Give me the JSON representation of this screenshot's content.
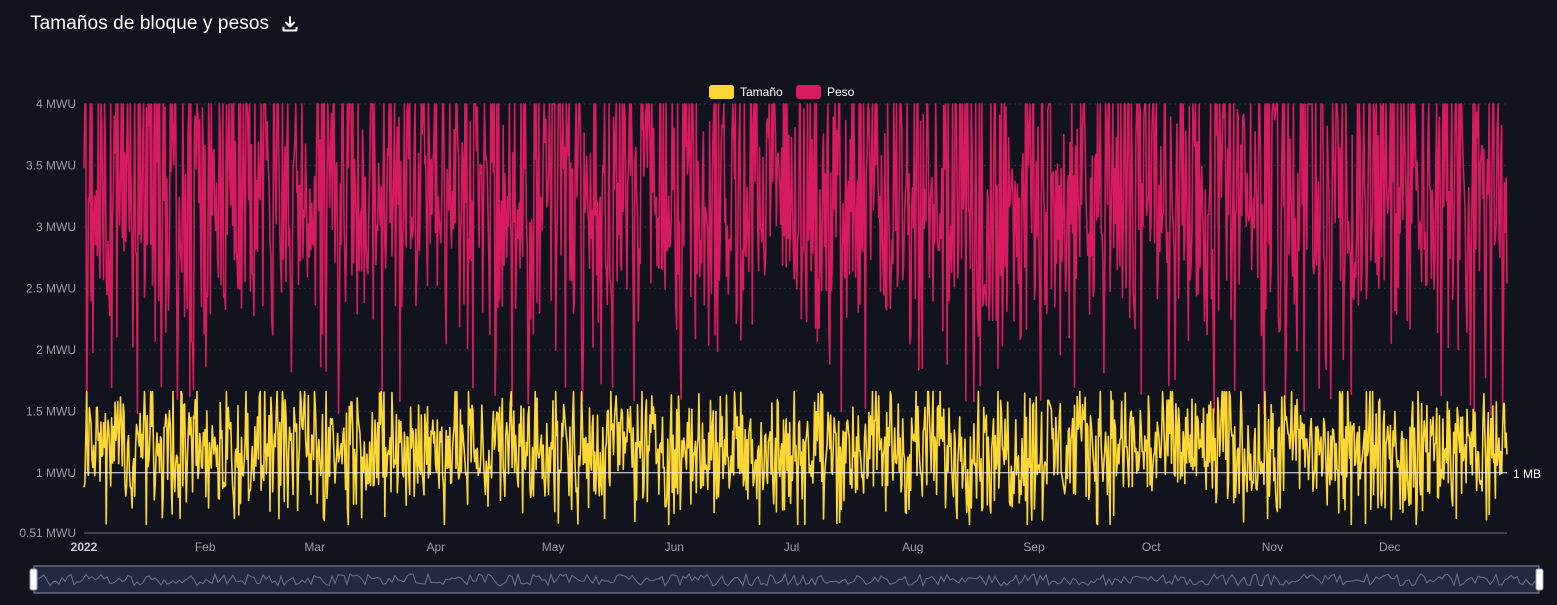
{
  "header": {
    "title": "Tamaños de bloque y pesos",
    "download_icon": "download-icon"
  },
  "colors": {
    "background": "#11131f",
    "size": "#fdd835",
    "weight": "#d81b60",
    "grid": "#2a2d3a",
    "axis_text": "#9a9ca6"
  },
  "chart_data": {
    "type": "line",
    "x_range": [
      "2022-01-01",
      "2022-12-31"
    ],
    "ylim": [
      0.51,
      4
    ],
    "y_unit": "MWU",
    "yticks": [
      "0.51 MWU",
      "1 MWU",
      "1.5 MWU",
      "2 MWU",
      "2.5 MWU",
      "3 MWU",
      "3.5 MWU",
      "4 MWU"
    ],
    "ytick_values": [
      0.51,
      1,
      1.5,
      2,
      2.5,
      3,
      3.5,
      4
    ],
    "xticks": [
      {
        "label": "2022",
        "date": "2022-01-01",
        "bold": true
      },
      {
        "label": "Feb",
        "date": "2022-02-01"
      },
      {
        "label": "Mar",
        "date": "2022-03-01"
      },
      {
        "label": "Apr",
        "date": "2022-04-01"
      },
      {
        "label": "May",
        "date": "2022-05-01"
      },
      {
        "label": "Jun",
        "date": "2022-06-01"
      },
      {
        "label": "Jul",
        "date": "2022-07-01"
      },
      {
        "label": "Aug",
        "date": "2022-08-01"
      },
      {
        "label": "Sep",
        "date": "2022-09-01"
      },
      {
        "label": "Oct",
        "date": "2022-10-01"
      },
      {
        "label": "Nov",
        "date": "2022-11-01"
      },
      {
        "label": "Dec",
        "date": "2022-12-01"
      }
    ],
    "legend": {
      "placement": "top-center",
      "entries": [
        "Tamaño",
        "Peso"
      ]
    },
    "mark_line": {
      "value": 1,
      "label": "1 MB"
    },
    "series": [
      {
        "name": "Tamaño",
        "color": "#fdd835",
        "min": 0.58,
        "max": 1.66,
        "mean": 1.2
      },
      {
        "name": "Peso",
        "color": "#d81b60",
        "min": 1.47,
        "max": 4.0,
        "mean": 3.1
      }
    ],
    "grid": true,
    "data_zoom": {
      "start": 0,
      "end": 100
    }
  }
}
